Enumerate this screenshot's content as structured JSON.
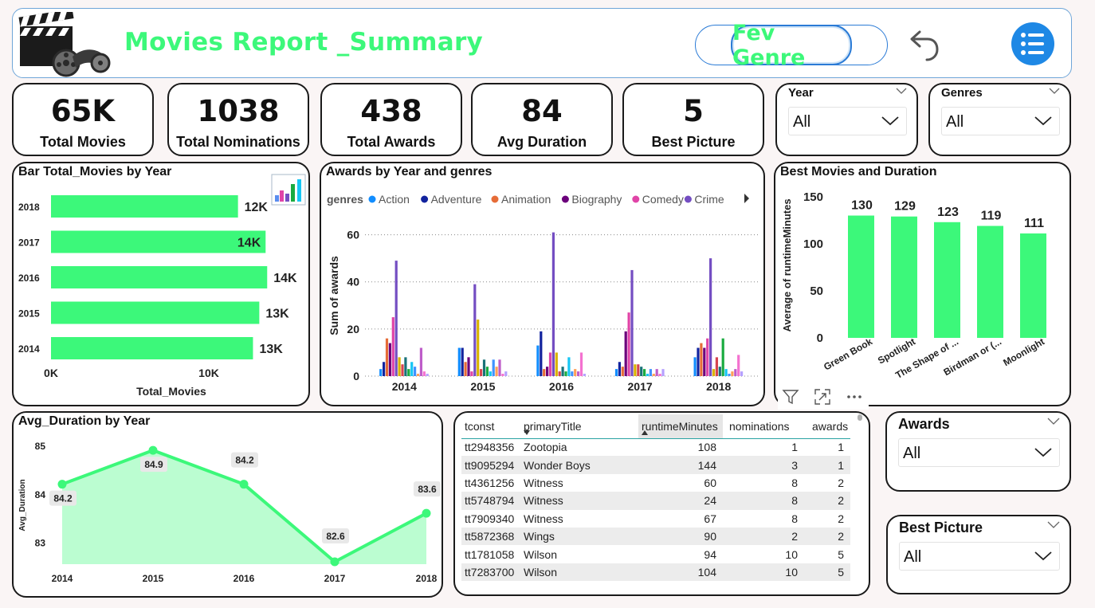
{
  "header": {
    "title": "Movies Report _Summary",
    "fav_button": "Fev Genre"
  },
  "kpis": [
    {
      "value": "65K",
      "label": "Total Movies"
    },
    {
      "value": "1038",
      "label": "Total Nominations"
    },
    {
      "value": "438",
      "label": "Total Awards"
    },
    {
      "value": "84",
      "label": "Avg Duration"
    },
    {
      "value": "5",
      "label": "Best Picture"
    }
  ],
  "slicers": {
    "year": {
      "title": "Year",
      "value": "All"
    },
    "genres": {
      "title": "Genres",
      "value": "All"
    },
    "awards": {
      "title": "Awards",
      "value": "All"
    },
    "best_picture": {
      "title": "Best Picture",
      "value": "All"
    }
  },
  "colors": {
    "accent": "#3cf87a",
    "kpi_text": "#111111",
    "series": [
      "#118dff",
      "#12239e",
      "#e66c37",
      "#6b007b",
      "#e044a7",
      "#744ec2",
      "#d9b300",
      "#d64550",
      "#197278",
      "#1aab40",
      "#15c6f4",
      "#4092ff",
      "#ffa058",
      "#be5dc9",
      "#f472d0",
      "#b5a1ff"
    ]
  },
  "chart_data": [
    {
      "type": "bar",
      "orientation": "horizontal",
      "title": "Bar Total_Movies by Year",
      "categories": [
        "2018",
        "2017",
        "2016",
        "2015",
        "2014"
      ],
      "values": [
        11850,
        13600,
        13700,
        13200,
        12800
      ],
      "data_labels": [
        "12K",
        "14K",
        "14K",
        "13K",
        "13K"
      ],
      "xlabel": "Total_Movies",
      "xticks": [
        "0K",
        "10K"
      ],
      "xlim": [
        0,
        14200
      ]
    },
    {
      "type": "bar",
      "title": "Awards by Year and genres",
      "legend_title": "genres",
      "legend": [
        "Action",
        "Adventure",
        "Animation",
        "Biography",
        "Comedy",
        "Crime"
      ],
      "legend_position": "top",
      "categories": [
        "2014",
        "2015",
        "2016",
        "2017",
        "2018"
      ],
      "ylabel": "Sum of awards",
      "ylim": [
        0,
        70
      ],
      "yticks": [
        0,
        20,
        40,
        60
      ],
      "series": [
        {
          "name": "Action",
          "values": [
            3,
            12,
            13,
            3,
            8
          ]
        },
        {
          "name": "Adventure",
          "values": [
            6,
            12,
            19,
            6,
            12
          ]
        },
        {
          "name": "Animation",
          "values": [
            16,
            6,
            3,
            4,
            14
          ]
        },
        {
          "name": "Biography",
          "values": [
            14,
            8,
            4,
            19,
            12
          ]
        },
        {
          "name": "Comedy",
          "values": [
            25,
            2,
            10,
            27,
            16
          ]
        },
        {
          "name": "Crime",
          "values": [
            49,
            39,
            61,
            45,
            50
          ]
        },
        {
          "values": [
            8,
            24,
            10,
            5,
            3
          ]
        },
        {
          "values": [
            5,
            3,
            2,
            5,
            8
          ]
        },
        {
          "values": [
            8,
            7,
            4,
            4,
            4
          ]
        },
        {
          "values": [
            3,
            4,
            2,
            3,
            16
          ]
        },
        {
          "values": [
            6,
            2,
            8,
            1,
            3
          ]
        },
        {
          "values": [
            4,
            7,
            2,
            3,
            1
          ]
        },
        {
          "values": [
            1,
            4,
            3,
            1,
            2
          ]
        },
        {
          "values": [
            12,
            7,
            2,
            3,
            3
          ]
        },
        {
          "values": [
            2,
            1,
            10,
            1,
            9
          ]
        },
        {
          "values": [
            1,
            2,
            1,
            3,
            2
          ]
        }
      ]
    },
    {
      "type": "bar",
      "title": "Best Movies and Duration",
      "categories": [
        "Green Book",
        "Spotlight",
        "The Shape of ...",
        "Birdman or (...",
        "Moonlight"
      ],
      "values": [
        130,
        129,
        123,
        119,
        111
      ],
      "ylabel": "Average of runtimeMinutes",
      "ylim": [
        0,
        155
      ],
      "yticks": [
        0,
        50,
        100,
        150
      ]
    },
    {
      "type": "area",
      "title": "Avg_Duration by Year",
      "x": [
        "2014",
        "2015",
        "2016",
        "2017",
        "2018"
      ],
      "values": [
        84.2,
        84.9,
        84.2,
        82.6,
        83.6
      ],
      "ylabel": "Avg_Duration",
      "ylim": [
        82.55,
        85.05
      ],
      "yticks": [
        83,
        84,
        85
      ]
    }
  ],
  "table": {
    "columns": [
      "tconst",
      "primaryTitle",
      "runtimeMinutes",
      "nominations",
      "awards"
    ],
    "rows": [
      [
        "tt2948356",
        "Zootopia",
        "108",
        "1",
        "1"
      ],
      [
        "tt9095294",
        "Wonder Boys",
        "144",
        "3",
        "1"
      ],
      [
        "tt4361256",
        "Witness",
        "60",
        "8",
        "2"
      ],
      [
        "tt5748794",
        "Witness",
        "24",
        "8",
        "2"
      ],
      [
        "tt7909340",
        "Witness",
        "67",
        "8",
        "2"
      ],
      [
        "tt5872368",
        "Wings",
        "90",
        "2",
        "2"
      ],
      [
        "tt1781058",
        "Wilson",
        "94",
        "10",
        "5"
      ],
      [
        "tt7283700",
        "Wilson",
        "104",
        "10",
        "5"
      ]
    ]
  }
}
